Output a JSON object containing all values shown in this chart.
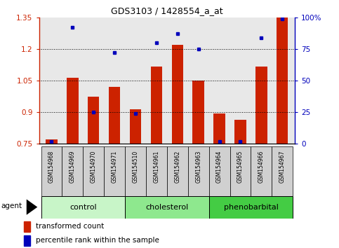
{
  "title": "GDS3103 / 1428554_a_at",
  "samples": [
    "GSM154968",
    "GSM154969",
    "GSM154970",
    "GSM154971",
    "GSM154510",
    "GSM154961",
    "GSM154962",
    "GSM154963",
    "GSM154964",
    "GSM154965",
    "GSM154966",
    "GSM154967"
  ],
  "groups": [
    {
      "label": "control",
      "indices": [
        0,
        1,
        2,
        3
      ]
    },
    {
      "label": "cholesterol",
      "indices": [
        4,
        5,
        6,
        7
      ]
    },
    {
      "label": "phenobarbital",
      "indices": [
        8,
        9,
        10,
        11
      ]
    }
  ],
  "group_colors": [
    "#c8f5c8",
    "#8ee88e",
    "#44cc44"
  ],
  "red_values": [
    0.77,
    1.065,
    0.975,
    1.02,
    0.915,
    1.115,
    1.22,
    1.05,
    0.895,
    0.865,
    1.115,
    1.35
  ],
  "blue_percentiles": [
    2,
    92,
    25,
    72,
    24,
    80,
    87,
    75,
    2,
    2,
    84,
    99
  ],
  "ylim_left": [
    0.75,
    1.35
  ],
  "ylim_right": [
    0,
    100
  ],
  "yticks_left": [
    0.75,
    0.9,
    1.05,
    1.2,
    1.35
  ],
  "yticks_right": [
    0,
    25,
    50,
    75,
    100
  ],
  "ytick_labels_right": [
    "0",
    "25",
    "50",
    "75",
    "100%"
  ],
  "grid_lines": [
    0.9,
    1.05,
    1.2
  ],
  "bar_color": "#cc2200",
  "dot_color": "#0000bb",
  "bar_bottom": 0.75,
  "plot_bg_color": "#e8e8e8",
  "legend": [
    "transformed count",
    "percentile rank within the sample"
  ]
}
